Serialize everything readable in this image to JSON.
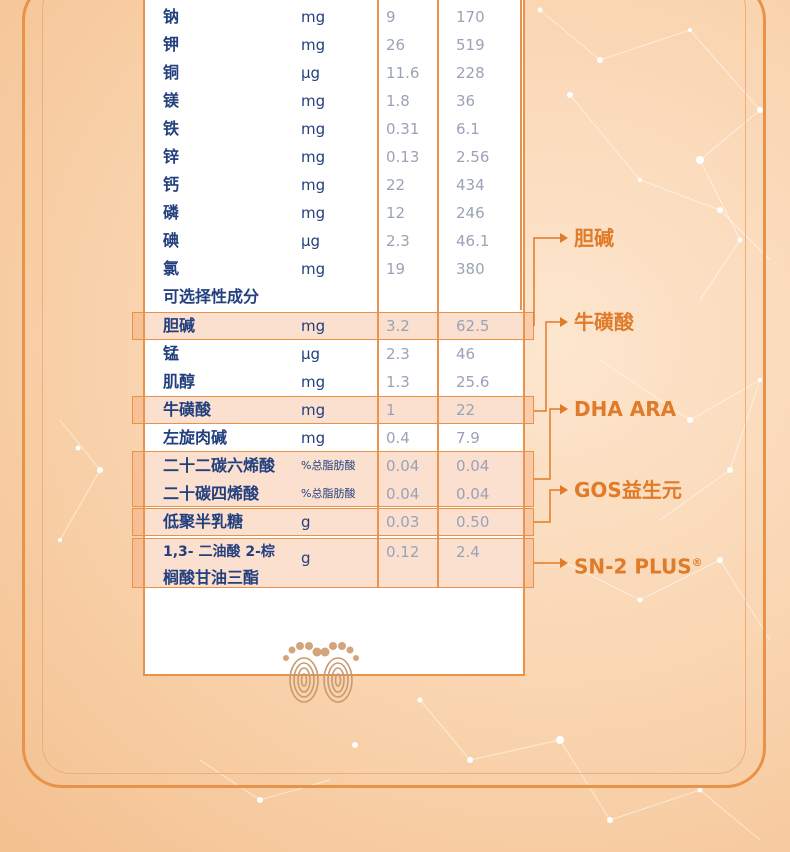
{
  "nutrition_table": {
    "rows": [
      {
        "name": "钠",
        "unit": "mg",
        "v1": "9",
        "v2": "170"
      },
      {
        "name": "钾",
        "unit": "mg",
        "v1": "26",
        "v2": "519"
      },
      {
        "name": "铜",
        "unit": "μg",
        "v1": "11.6",
        "v2": "228"
      },
      {
        "name": "镁",
        "unit": "mg",
        "v1": "1.8",
        "v2": "36"
      },
      {
        "name": "铁",
        "unit": "mg",
        "v1": "0.31",
        "v2": "6.1"
      },
      {
        "name": "锌",
        "unit": "mg",
        "v1": "0.13",
        "v2": "2.56"
      },
      {
        "name": "钙",
        "unit": "mg",
        "v1": "22",
        "v2": "434"
      },
      {
        "name": "磷",
        "unit": "mg",
        "v1": "12",
        "v2": "246"
      },
      {
        "name": "碘",
        "unit": "μg",
        "v1": "2.3",
        "v2": "46.1"
      },
      {
        "name": "氯",
        "unit": "mg",
        "v1": "19",
        "v2": "380"
      },
      {
        "name": "可选择性成分",
        "unit": "",
        "v1": "",
        "v2": ""
      },
      {
        "name": "胆碱",
        "unit": "mg",
        "v1": "3.2",
        "v2": "62.5"
      },
      {
        "name": "锰",
        "unit": "μg",
        "v1": "2.3",
        "v2": "46"
      },
      {
        "name": "肌醇",
        "unit": "mg",
        "v1": "1.3",
        "v2": "25.6"
      },
      {
        "name": "牛磺酸",
        "unit": "mg",
        "v1": "1",
        "v2": "22"
      },
      {
        "name": "左旋肉碱",
        "unit": "mg",
        "v1": "0.4",
        "v2": "7.9"
      },
      {
        "name": "二十二碳六烯酸",
        "unit": "%总脂肪酸",
        "v1": "0.04",
        "v2": "0.04"
      },
      {
        "name": "二十碳四烯酸",
        "unit": "%总脂肪酸",
        "v1": "0.04",
        "v2": "0.04"
      },
      {
        "name": "低聚半乳糖",
        "unit": "g",
        "v1": "0.03",
        "v2": "0.50"
      },
      {
        "name": "1,3- 二油酸 2-棕",
        "unit": "g",
        "v1": "0.12",
        "v2": "2.4"
      },
      {
        "name": "榈酸甘油三酯",
        "unit": "",
        "v1": "",
        "v2": ""
      }
    ]
  },
  "callouts": {
    "choline": "胆碱",
    "taurine": "牛磺酸",
    "dha_ara": "DHA ARA",
    "gos": "GOS益生元",
    "sn2": "SN-2 PLUS",
    "sn2_mark": "®"
  },
  "colors": {
    "accent": "#e8924a",
    "callout_text": "#e07b2a",
    "name_text": "#23407e",
    "value_text": "#9aa3b6",
    "highlight": "#f2965f"
  },
  "icons": [
    "feet-logo-icon"
  ]
}
